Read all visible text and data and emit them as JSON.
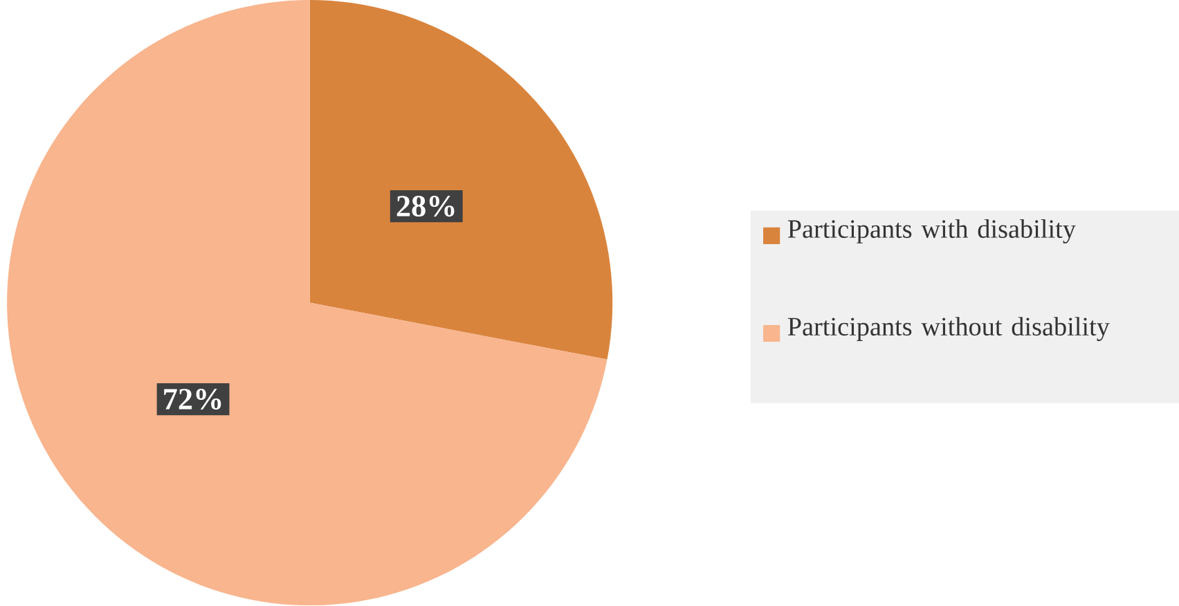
{
  "chart_data": {
    "type": "pie",
    "categories": [
      "Participants with disability",
      "Participants without disability"
    ],
    "values": [
      28,
      72
    ],
    "colors": [
      "#d9843d",
      "#f8b58e"
    ],
    "value_labels": [
      "28%",
      "72%"
    ],
    "legend": "right"
  }
}
